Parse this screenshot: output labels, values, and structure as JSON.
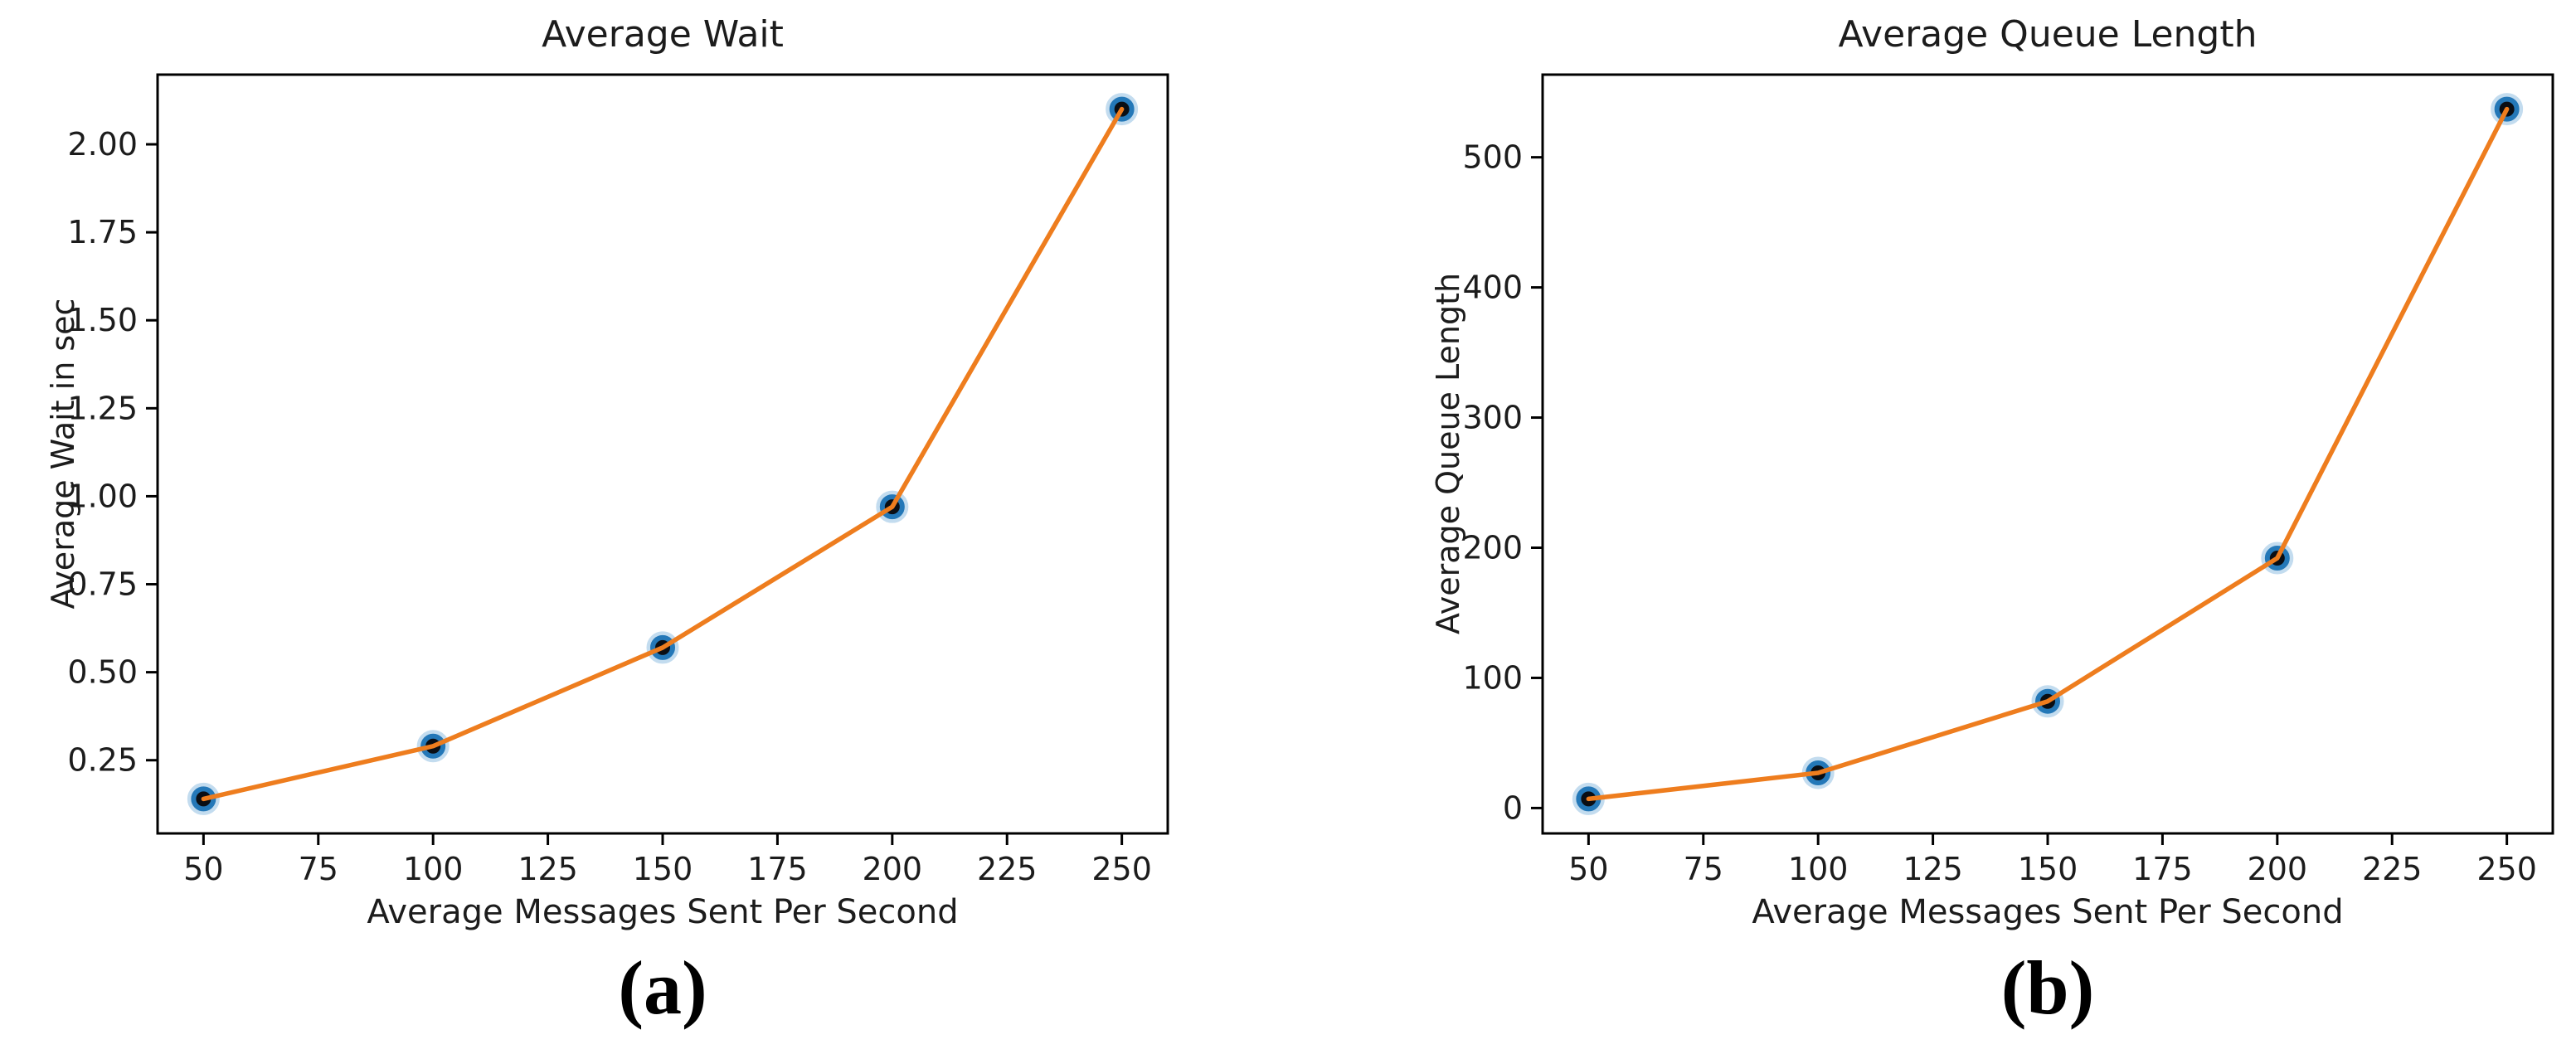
{
  "figure": {
    "background": "#ffffff"
  },
  "style": {
    "line_color": "#ee7d1e",
    "marker_core_color": "#0a0e14",
    "marker_ring_color": "#2478b8",
    "marker_glow_color": "#7ab1dc",
    "axis_color": "#000000",
    "text_color": "#1c1c1c"
  },
  "chart_data": [
    {
      "type": "line",
      "title": "Average Wait",
      "xlabel": "Average Messages Sent Per Second",
      "ylabel": "Average Wait in sec",
      "caption": "(a)",
      "x": [
        50,
        100,
        150,
        200,
        250
      ],
      "y": [
        0.14,
        0.29,
        0.57,
        0.97,
        2.1
      ],
      "xlim": [
        40,
        260
      ],
      "ylim": [
        0.042,
        2.198
      ],
      "xticks": [
        50,
        75,
        100,
        125,
        150,
        175,
        200,
        225,
        250
      ],
      "xtick_labels": [
        "50",
        "75",
        "100",
        "125",
        "150",
        "175",
        "200",
        "225",
        "250"
      ],
      "yticks": [
        0.25,
        0.5,
        0.75,
        1.0,
        1.25,
        1.5,
        1.75,
        2.0
      ],
      "ytick_labels": [
        "0.25",
        "0.50",
        "0.75",
        "1.00",
        "1.25",
        "1.50",
        "1.75",
        "2.00"
      ],
      "grid": false,
      "legend": null
    },
    {
      "type": "line",
      "title": "Average Queue Length",
      "xlabel": "Average Messages Sent Per Second",
      "ylabel": "Average Queue Length",
      "caption": "(b)",
      "x": [
        50,
        100,
        150,
        200,
        250
      ],
      "y": [
        7,
        27,
        82,
        192,
        537
      ],
      "xlim": [
        40,
        260
      ],
      "ylim": [
        -19.5,
        563.5
      ],
      "xticks": [
        50,
        75,
        100,
        125,
        150,
        175,
        200,
        225,
        250
      ],
      "xtick_labels": [
        "50",
        "75",
        "100",
        "125",
        "150",
        "175",
        "200",
        "225",
        "250"
      ],
      "yticks": [
        0,
        100,
        200,
        300,
        400,
        500
      ],
      "ytick_labels": [
        "0",
        "100",
        "200",
        "300",
        "400",
        "500"
      ],
      "grid": false,
      "legend": null
    }
  ]
}
